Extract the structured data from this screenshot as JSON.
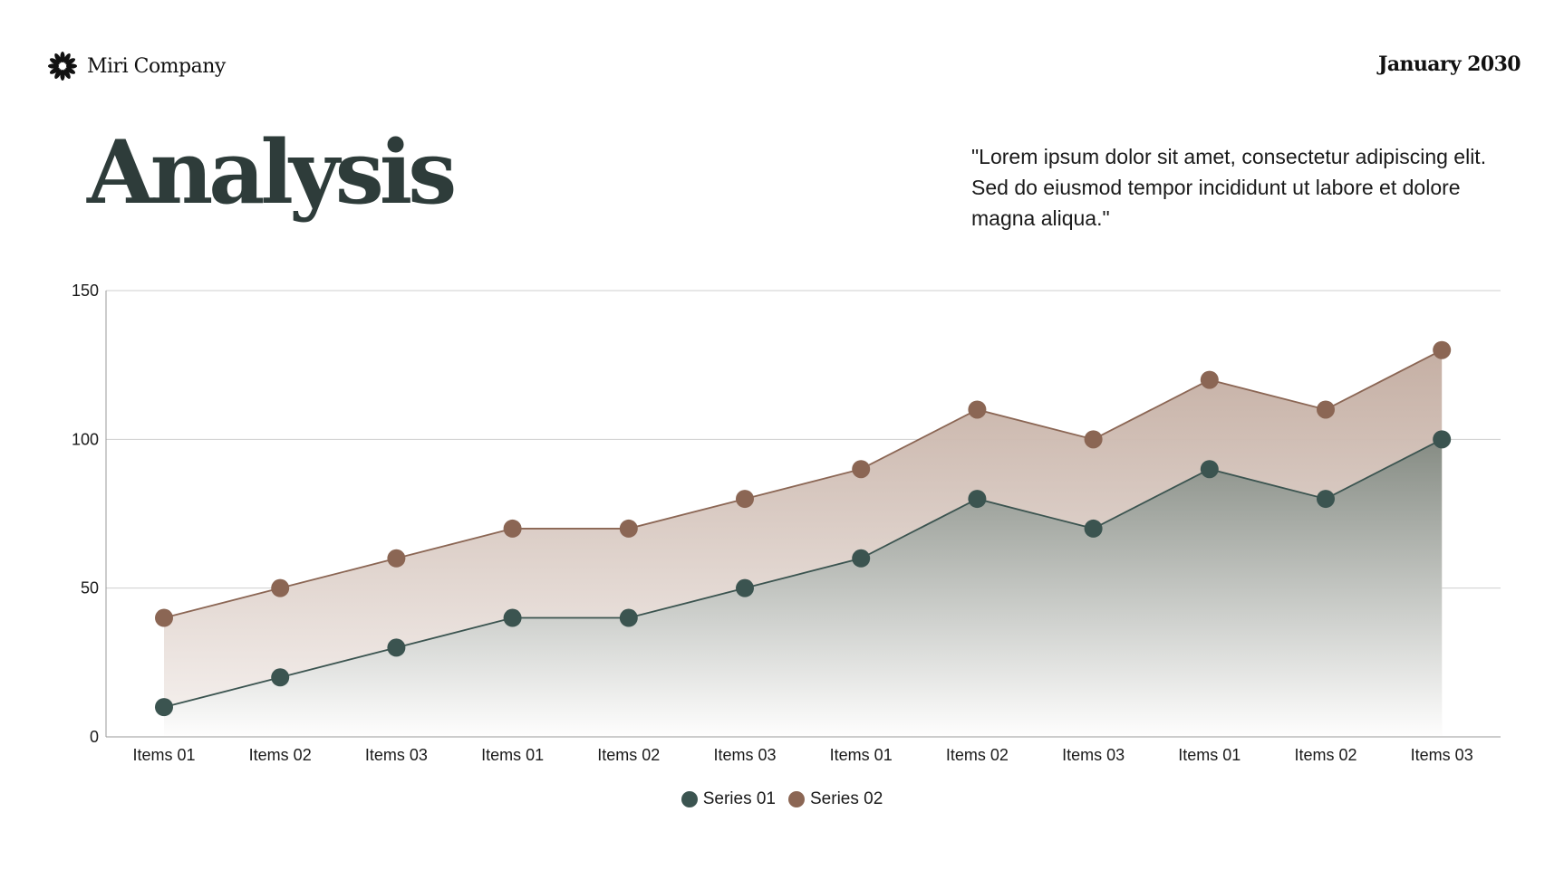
{
  "header": {
    "brand_name": "Miri Company",
    "brand_icon": "flower-burst-icon",
    "date": "January 2030"
  },
  "title": "Analysis",
  "quote": "\"Lorem ipsum dolor sit amet, consectetur adipiscing elit. Sed do eiusmod tempor incididunt ut labore et dolore magna aliqua.\"",
  "chart_data": {
    "type": "area",
    "categories": [
      "Items 01",
      "Items 02",
      "Items 03",
      "Items 01",
      "Items 02",
      "Items 03",
      "Items 01",
      "Items 02",
      "Items 03",
      "Items 01",
      "Items 02",
      "Items 03"
    ],
    "series": [
      {
        "name": "Series 01",
        "color": "#3b5450",
        "values": [
          10,
          20,
          30,
          40,
          40,
          50,
          60,
          80,
          70,
          90,
          80,
          100
        ]
      },
      {
        "name": "Series 02",
        "color": "#8b6654",
        "values": [
          40,
          50,
          60,
          70,
          70,
          80,
          90,
          110,
          100,
          120,
          110,
          130
        ]
      }
    ],
    "ylim": [
      0,
      150
    ],
    "yticks": [
      0,
      50,
      100,
      150
    ],
    "title": "",
    "xlabel": "",
    "ylabel": "",
    "grid": true,
    "legend_position": "bottom"
  }
}
